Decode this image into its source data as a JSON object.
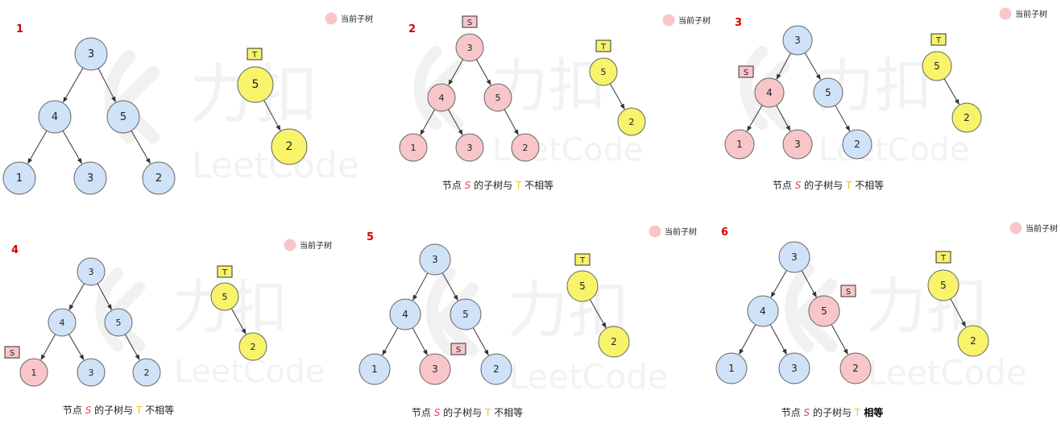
{
  "legend_label": "当前子树",
  "colors": {
    "node_blue": "#cfe2f7",
    "node_pink": "#f8c6c9",
    "node_yellow": "#f7f36a",
    "node_stroke": "#333333",
    "tag_pink": "#f8c6c9",
    "tag_yellow": "#f7f36a",
    "step_number": "#d40000",
    "s_text": "#e0474c",
    "t_text": "#f0c419"
  },
  "watermark": {
    "brand_cn": "力扣",
    "brand_en": "LeetCode"
  },
  "tags": {
    "s": "S",
    "t": "T"
  },
  "caption_parts": {
    "prefix": "节点",
    "s": "S",
    "middle": "的子树与",
    "t": "T",
    "not_equal": "不相等",
    "equal": "相等"
  },
  "panels": [
    {
      "number": "1",
      "s_node": "",
      "current": [],
      "equal": null,
      "tree_s": [
        "3",
        "4",
        "5",
        "1",
        "3",
        "2"
      ],
      "tree_t": [
        "5",
        "2"
      ]
    },
    {
      "number": "2",
      "s_node": "root",
      "current": [
        "root",
        "l",
        "r",
        "ll",
        "lr",
        "rr"
      ],
      "equal": false,
      "tree_s": [
        "3",
        "4",
        "5",
        "1",
        "3",
        "2"
      ],
      "tree_t": [
        "5",
        "2"
      ]
    },
    {
      "number": "3",
      "s_node": "l",
      "current": [
        "l",
        "ll",
        "lr"
      ],
      "equal": false,
      "tree_s": [
        "3",
        "4",
        "5",
        "1",
        "3",
        "2"
      ],
      "tree_t": [
        "5",
        "2"
      ]
    },
    {
      "number": "4",
      "s_node": "ll",
      "current": [
        "ll"
      ],
      "equal": false,
      "tree_s": [
        "3",
        "4",
        "5",
        "1",
        "3",
        "2"
      ],
      "tree_t": [
        "5",
        "2"
      ]
    },
    {
      "number": "5",
      "s_node": "lr",
      "current": [
        "lr"
      ],
      "equal": false,
      "tree_s": [
        "3",
        "4",
        "5",
        "1",
        "3",
        "2"
      ],
      "tree_t": [
        "5",
        "2"
      ]
    },
    {
      "number": "6",
      "s_node": "r",
      "current": [
        "r",
        "rr"
      ],
      "equal": true,
      "tree_s": [
        "3",
        "4",
        "5",
        "1",
        "3",
        "2"
      ],
      "tree_t": [
        "5",
        "2"
      ]
    }
  ]
}
